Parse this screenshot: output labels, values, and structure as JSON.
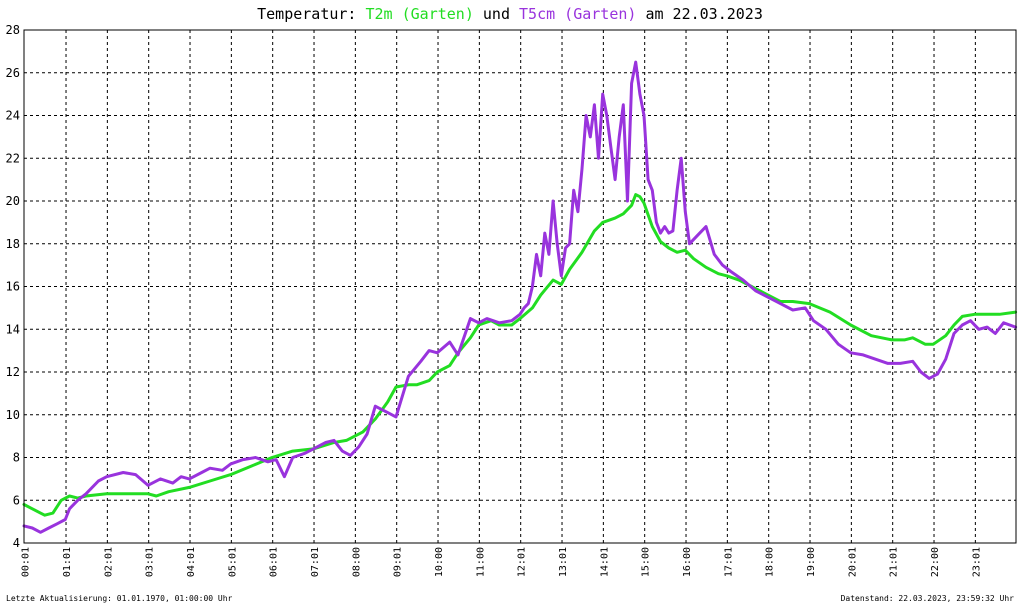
{
  "header": {
    "prefix": "Temperatur: ",
    "series1_label": "T2m (Garten)",
    "connector": " und ",
    "series2_label": "T5cm (Garten)",
    "suffix": " am 22.03.2023"
  },
  "footer": {
    "left": "Letzte Aktualisierung: 01.01.1970, 01:00:00 Uhr",
    "right": "Datenstand: 22.03.2023, 23:59:32 Uhr"
  },
  "colors": {
    "t2m": "#22dd22",
    "t5cm": "#9933dd",
    "grid": "#000000"
  },
  "chart_data": {
    "type": "line",
    "title": "Temperatur: T2m (Garten) und T5cm (Garten) am 22.03.2023",
    "xlim": [
      0,
      24
    ],
    "ylim": [
      4,
      28
    ],
    "yticks": [
      4,
      6,
      8,
      10,
      12,
      14,
      16,
      18,
      20,
      22,
      24,
      26,
      28
    ],
    "xtick_labels": [
      "00:01",
      "01:01",
      "02:01",
      "03:01",
      "04:01",
      "05:01",
      "06:01",
      "07:01",
      "08:00",
      "09:01",
      "10:00",
      "11:00",
      "12:01",
      "13:01",
      "14:01",
      "15:00",
      "16:00",
      "17:01",
      "18:00",
      "19:00",
      "20:01",
      "21:01",
      "22:00",
      "23:01"
    ],
    "grid": true,
    "series": [
      {
        "name": "T2m (Garten)",
        "color": "#22dd22",
        "x": [
          0,
          0.2,
          0.4,
          0.5,
          0.7,
          0.9,
          1.1,
          1.3,
          1.5,
          2.0,
          2.5,
          3.0,
          3.2,
          3.5,
          4.0,
          4.5,
          5.0,
          5.5,
          6.0,
          6.5,
          7.0,
          7.5,
          7.8,
          8.2,
          8.5,
          8.8,
          9.0,
          9.3,
          9.5,
          9.8,
          10.0,
          10.3,
          10.5,
          10.8,
          11.0,
          11.3,
          11.5,
          11.8,
          12.0,
          12.3,
          12.5,
          12.8,
          13.0,
          13.2,
          13.5,
          13.8,
          14.0,
          14.3,
          14.5,
          14.7,
          14.8,
          14.9,
          15.0,
          15.2,
          15.4,
          15.6,
          15.8,
          16.0,
          16.2,
          16.5,
          16.8,
          17.0,
          17.3,
          17.6,
          18.0,
          18.3,
          18.6,
          19.0,
          19.5,
          20.0,
          20.5,
          21.0,
          21.3,
          21.5,
          21.8,
          22.0,
          22.3,
          22.5,
          22.7,
          23.0,
          23.3,
          23.6,
          23.99
        ],
        "y": [
          5.8,
          5.6,
          5.4,
          5.3,
          5.4,
          6.0,
          6.2,
          6.1,
          6.2,
          6.3,
          6.3,
          6.3,
          6.2,
          6.4,
          6.6,
          6.9,
          7.2,
          7.6,
          8.0,
          8.3,
          8.4,
          8.7,
          8.8,
          9.2,
          9.8,
          10.6,
          11.3,
          11.4,
          11.4,
          11.6,
          12.0,
          12.3,
          12.9,
          13.6,
          14.2,
          14.4,
          14.2,
          14.2,
          14.5,
          15.0,
          15.6,
          16.3,
          16.1,
          16.8,
          17.6,
          18.6,
          19.0,
          19.2,
          19.4,
          19.8,
          20.3,
          20.2,
          19.9,
          18.8,
          18.1,
          17.8,
          17.6,
          17.7,
          17.3,
          16.9,
          16.6,
          16.5,
          16.3,
          16.0,
          15.6,
          15.3,
          15.3,
          15.2,
          14.8,
          14.2,
          13.7,
          13.5,
          13.5,
          13.6,
          13.3,
          13.3,
          13.7,
          14.2,
          14.6,
          14.7,
          14.7,
          14.7,
          14.8
        ]
      },
      {
        "name": "T5cm (Garten)",
        "color": "#9933dd",
        "x": [
          0,
          0.2,
          0.4,
          0.6,
          0.8,
          1.0,
          1.1,
          1.3,
          1.5,
          1.8,
          2.0,
          2.4,
          2.7,
          3.0,
          3.3,
          3.6,
          3.8,
          4.0,
          4.3,
          4.5,
          4.8,
          5.0,
          5.3,
          5.6,
          5.9,
          6.1,
          6.3,
          6.5,
          6.8,
          7.0,
          7.3,
          7.5,
          7.7,
          7.9,
          8.1,
          8.3,
          8.5,
          8.8,
          9.0,
          9.3,
          9.6,
          9.8,
          10.0,
          10.3,
          10.5,
          10.8,
          11.0,
          11.2,
          11.5,
          11.8,
          12.0,
          12.1,
          12.2,
          12.3,
          12.4,
          12.5,
          12.6,
          12.7,
          12.8,
          12.9,
          13.0,
          13.1,
          13.2,
          13.3,
          13.4,
          13.5,
          13.6,
          13.7,
          13.8,
          13.9,
          14.0,
          14.1,
          14.2,
          14.3,
          14.4,
          14.5,
          14.6,
          14.7,
          14.8,
          14.9,
          15.0,
          15.1,
          15.2,
          15.3,
          15.4,
          15.5,
          15.6,
          15.7,
          15.8,
          15.9,
          16.0,
          16.1,
          16.3,
          16.5,
          16.7,
          16.9,
          17.1,
          17.4,
          17.7,
          18.0,
          18.3,
          18.6,
          18.9,
          19.1,
          19.4,
          19.7,
          20.0,
          20.3,
          20.6,
          20.9,
          21.2,
          21.5,
          21.7,
          21.9,
          22.1,
          22.3,
          22.5,
          22.7,
          22.9,
          23.1,
          23.3,
          23.5,
          23.7,
          23.99
        ],
        "y": [
          4.8,
          4.7,
          4.5,
          4.7,
          4.9,
          5.1,
          5.6,
          6.0,
          6.3,
          6.9,
          7.1,
          7.3,
          7.2,
          6.7,
          7.0,
          6.8,
          7.1,
          7.0,
          7.3,
          7.5,
          7.4,
          7.7,
          7.9,
          8.0,
          7.8,
          7.9,
          7.1,
          8.0,
          8.2,
          8.4,
          8.7,
          8.8,
          8.3,
          8.1,
          8.5,
          9.1,
          10.4,
          10.1,
          9.9,
          11.8,
          12.5,
          13.0,
          12.9,
          13.4,
          12.8,
          14.5,
          14.3,
          14.5,
          14.3,
          14.4,
          14.7,
          15.0,
          15.2,
          16.0,
          17.5,
          16.5,
          18.5,
          17.5,
          20.0,
          18.0,
          16.5,
          17.8,
          18.0,
          20.5,
          19.5,
          21.5,
          24.0,
          23.0,
          24.5,
          22.0,
          25.0,
          24.0,
          22.5,
          21.0,
          23.0,
          24.5,
          20.0,
          25.5,
          26.5,
          25.0,
          24.0,
          21.0,
          20.5,
          19.0,
          18.5,
          18.8,
          18.5,
          18.6,
          20.5,
          22.0,
          19.5,
          18.0,
          18.4,
          18.8,
          17.5,
          17.0,
          16.7,
          16.3,
          15.8,
          15.5,
          15.2,
          14.9,
          15.0,
          14.4,
          14.0,
          13.3,
          12.9,
          12.8,
          12.6,
          12.4,
          12.4,
          12.5,
          12.0,
          11.7,
          11.9,
          12.6,
          13.8,
          14.2,
          14.4,
          14.0,
          14.1,
          13.8,
          14.3,
          14.1
        ]
      }
    ]
  }
}
